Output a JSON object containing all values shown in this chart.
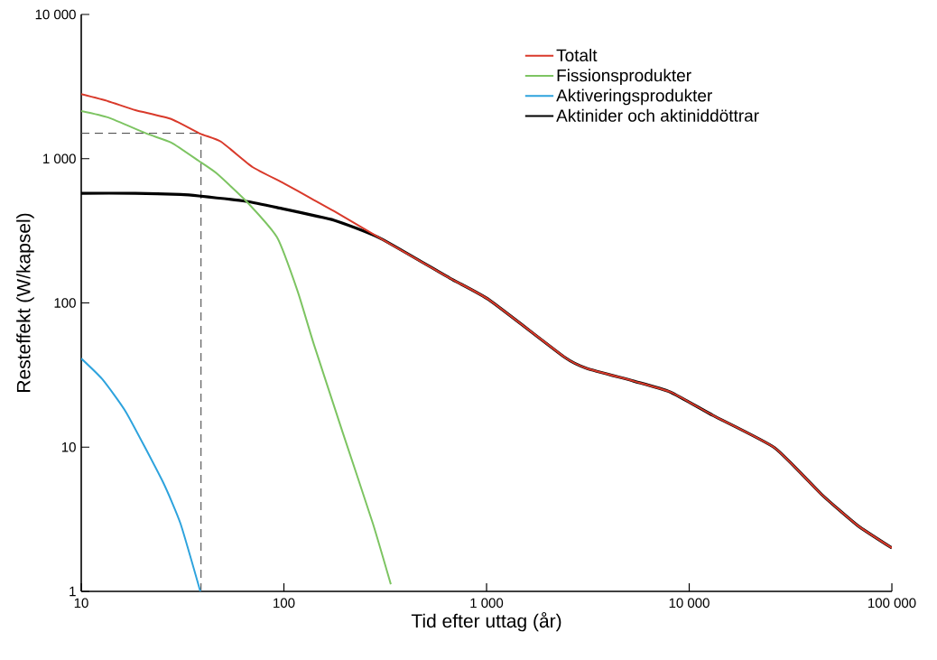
{
  "chart_data": {
    "type": "line",
    "xlabel": "Tid efter uttag (år)",
    "ylabel": "Resteffekt (W/kapsel)",
    "log": "xy",
    "legend": "top right",
    "marker": "none",
    "line_style": "solid",
    "xlim": [
      10,
      100000
    ],
    "ylim": [
      1,
      10000
    ],
    "xticks": [
      10,
      100,
      {
        "value": 1000,
        "label": "1 000"
      },
      {
        "value": 10000,
        "label": "10 000"
      },
      {
        "value": 100000,
        "label": "100 000"
      }
    ],
    "yticks": [
      1,
      10,
      100,
      {
        "value": 1000,
        "label": "1 000"
      },
      {
        "value": 10000,
        "label": "10 000"
      }
    ],
    "ref_lines": [
      {
        "axis": "x",
        "value": 39,
        "color": "#555555",
        "line_style": "dashed"
      },
      {
        "axis": "y",
        "value": 1500,
        "color": "#555555",
        "line_style": "dashed"
      }
    ],
    "series": [
      {
        "name": "Totalt",
        "color": "#d93a2b",
        "x": [
          10,
          13.6,
          18.5,
          27.9,
          38.7,
          49,
          70,
          100,
          137,
          177,
          300,
          656,
          1030,
          2440,
          3120,
          5320,
          8020,
          13100,
          26400,
          45000,
          67600,
          100000
        ],
        "values": [
          2800,
          2500,
          2170,
          1880,
          1490,
          1310,
          875,
          675,
          528,
          432,
          280,
          149,
          105,
          41.8,
          35.2,
          28.7,
          24.2,
          16.6,
          9.9,
          4.7,
          2.87,
          2.0
        ]
      },
      {
        "name": "Fissionsprodukter",
        "color": "#7dc462",
        "x": [
          10,
          13.6,
          21.1,
          27.9,
          37.9,
          46.6,
          65.3,
          92.6,
          117,
          140,
          196,
          275,
          337
        ],
        "values": [
          2140,
          1930,
          1490,
          1290,
          968,
          791,
          506,
          284,
          120,
          52.6,
          12.4,
          2.95,
          1.12
        ]
      },
      {
        "name": "Aktiveringsprodukter",
        "color": "#2ea3dd",
        "x": [
          10,
          12.7,
          16.7,
          25.2,
          30.9,
          38.7
        ],
        "values": [
          41.2,
          29.6,
          17.3,
          5.8,
          2.95,
          1.0
        ]
      },
      {
        "name": "Aktinider och aktiniddöttrar",
        "color": "#000000",
        "x": [
          10,
          18.5,
          30.9,
          38,
          65,
          92.6,
          177,
          300,
          656,
          1030,
          2440,
          3120,
          5320,
          8020,
          13100,
          26400,
          45000,
          67600,
          100000
        ],
        "values": [
          576,
          576,
          565,
          552,
          506,
          458,
          374,
          280,
          149,
          105,
          41.8,
          35.2,
          28.7,
          24.2,
          16.6,
          9.9,
          4.7,
          2.87,
          2.0
        ]
      }
    ]
  }
}
